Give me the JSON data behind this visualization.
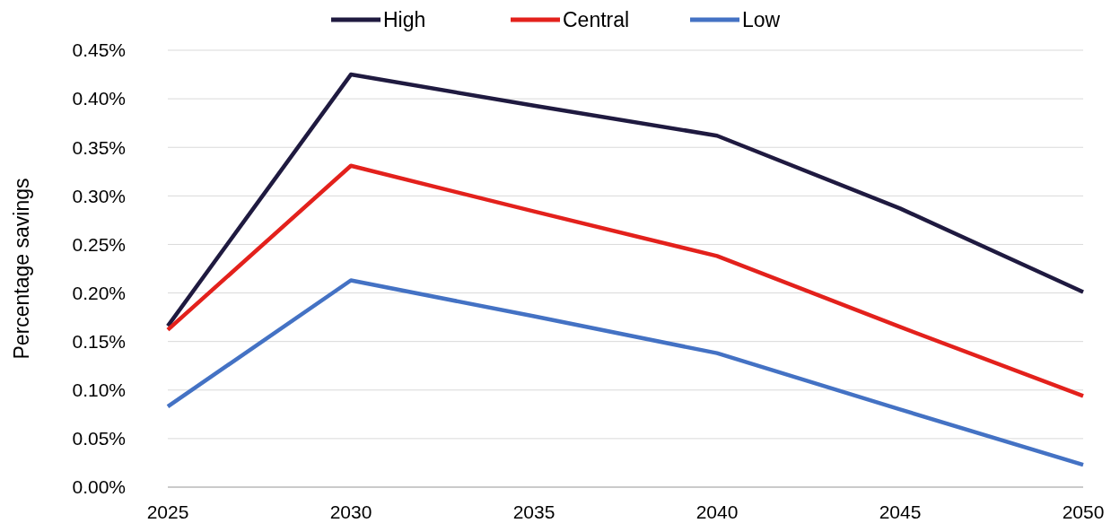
{
  "chart_data": {
    "type": "line",
    "ylabel": "Percentage savings",
    "x": [
      2025,
      2030,
      2035,
      2040,
      2045,
      2050
    ],
    "xlim": [
      2025,
      2050
    ],
    "xticks": [
      2025,
      2030,
      2035,
      2040,
      2045,
      2050
    ],
    "ylim": [
      0,
      0.45
    ],
    "yticks": [
      {
        "value": 0,
        "label": "0.00%"
      },
      {
        "value": 0.05,
        "label": "0.05%"
      },
      {
        "value": 0.1,
        "label": "0.10%"
      },
      {
        "value": 0.15,
        "label": "0.15%"
      },
      {
        "value": 0.2,
        "label": "0.20%"
      },
      {
        "value": 0.25,
        "label": "0.25%"
      },
      {
        "value": 0.3,
        "label": "0.30%"
      },
      {
        "value": 0.35,
        "label": "0.35%"
      },
      {
        "value": 0.4,
        "label": "0.40%"
      },
      {
        "value": 0.45,
        "label": "0.45%"
      }
    ],
    "grid": "y",
    "legend": "top",
    "line_style": "solid",
    "marker": "none",
    "series": [
      {
        "name": "High",
        "color": "#1f1a40",
        "values": [
          0.166,
          0.425,
          0.393,
          0.362,
          0.287,
          0.201
        ]
      },
      {
        "name": "Central",
        "color": "#e3211c",
        "values": [
          0.162,
          0.331,
          0.284,
          0.238,
          0.165,
          0.094
        ]
      },
      {
        "name": "Low",
        "color": "#4472c4",
        "values": [
          0.083,
          0.213,
          0.176,
          0.138,
          0.08,
          0.023
        ]
      }
    ]
  }
}
